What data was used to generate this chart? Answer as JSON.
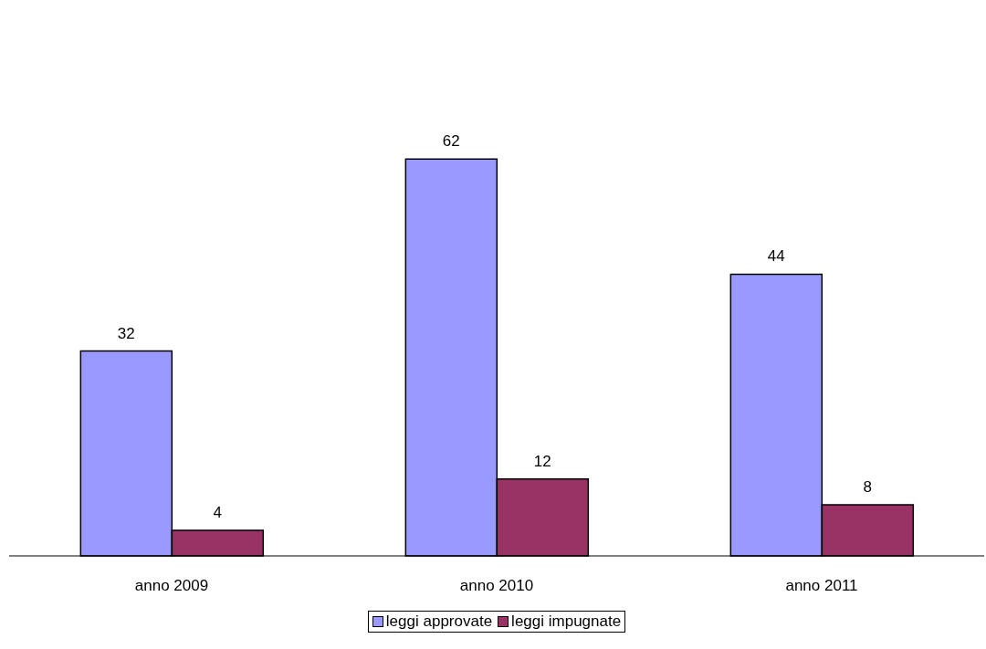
{
  "chart_data": {
    "type": "bar",
    "categories": [
      "anno 2009",
      "anno 2010",
      "anno 2011"
    ],
    "series": [
      {
        "name": "leggi approvate",
        "color": "#9999ff",
        "values": [
          32,
          62,
          44
        ]
      },
      {
        "name": "leggi impugnate",
        "color": "#993366",
        "values": [
          4,
          12,
          8
        ]
      }
    ],
    "data_labels": true,
    "legend": "bottom",
    "grid": false
  }
}
